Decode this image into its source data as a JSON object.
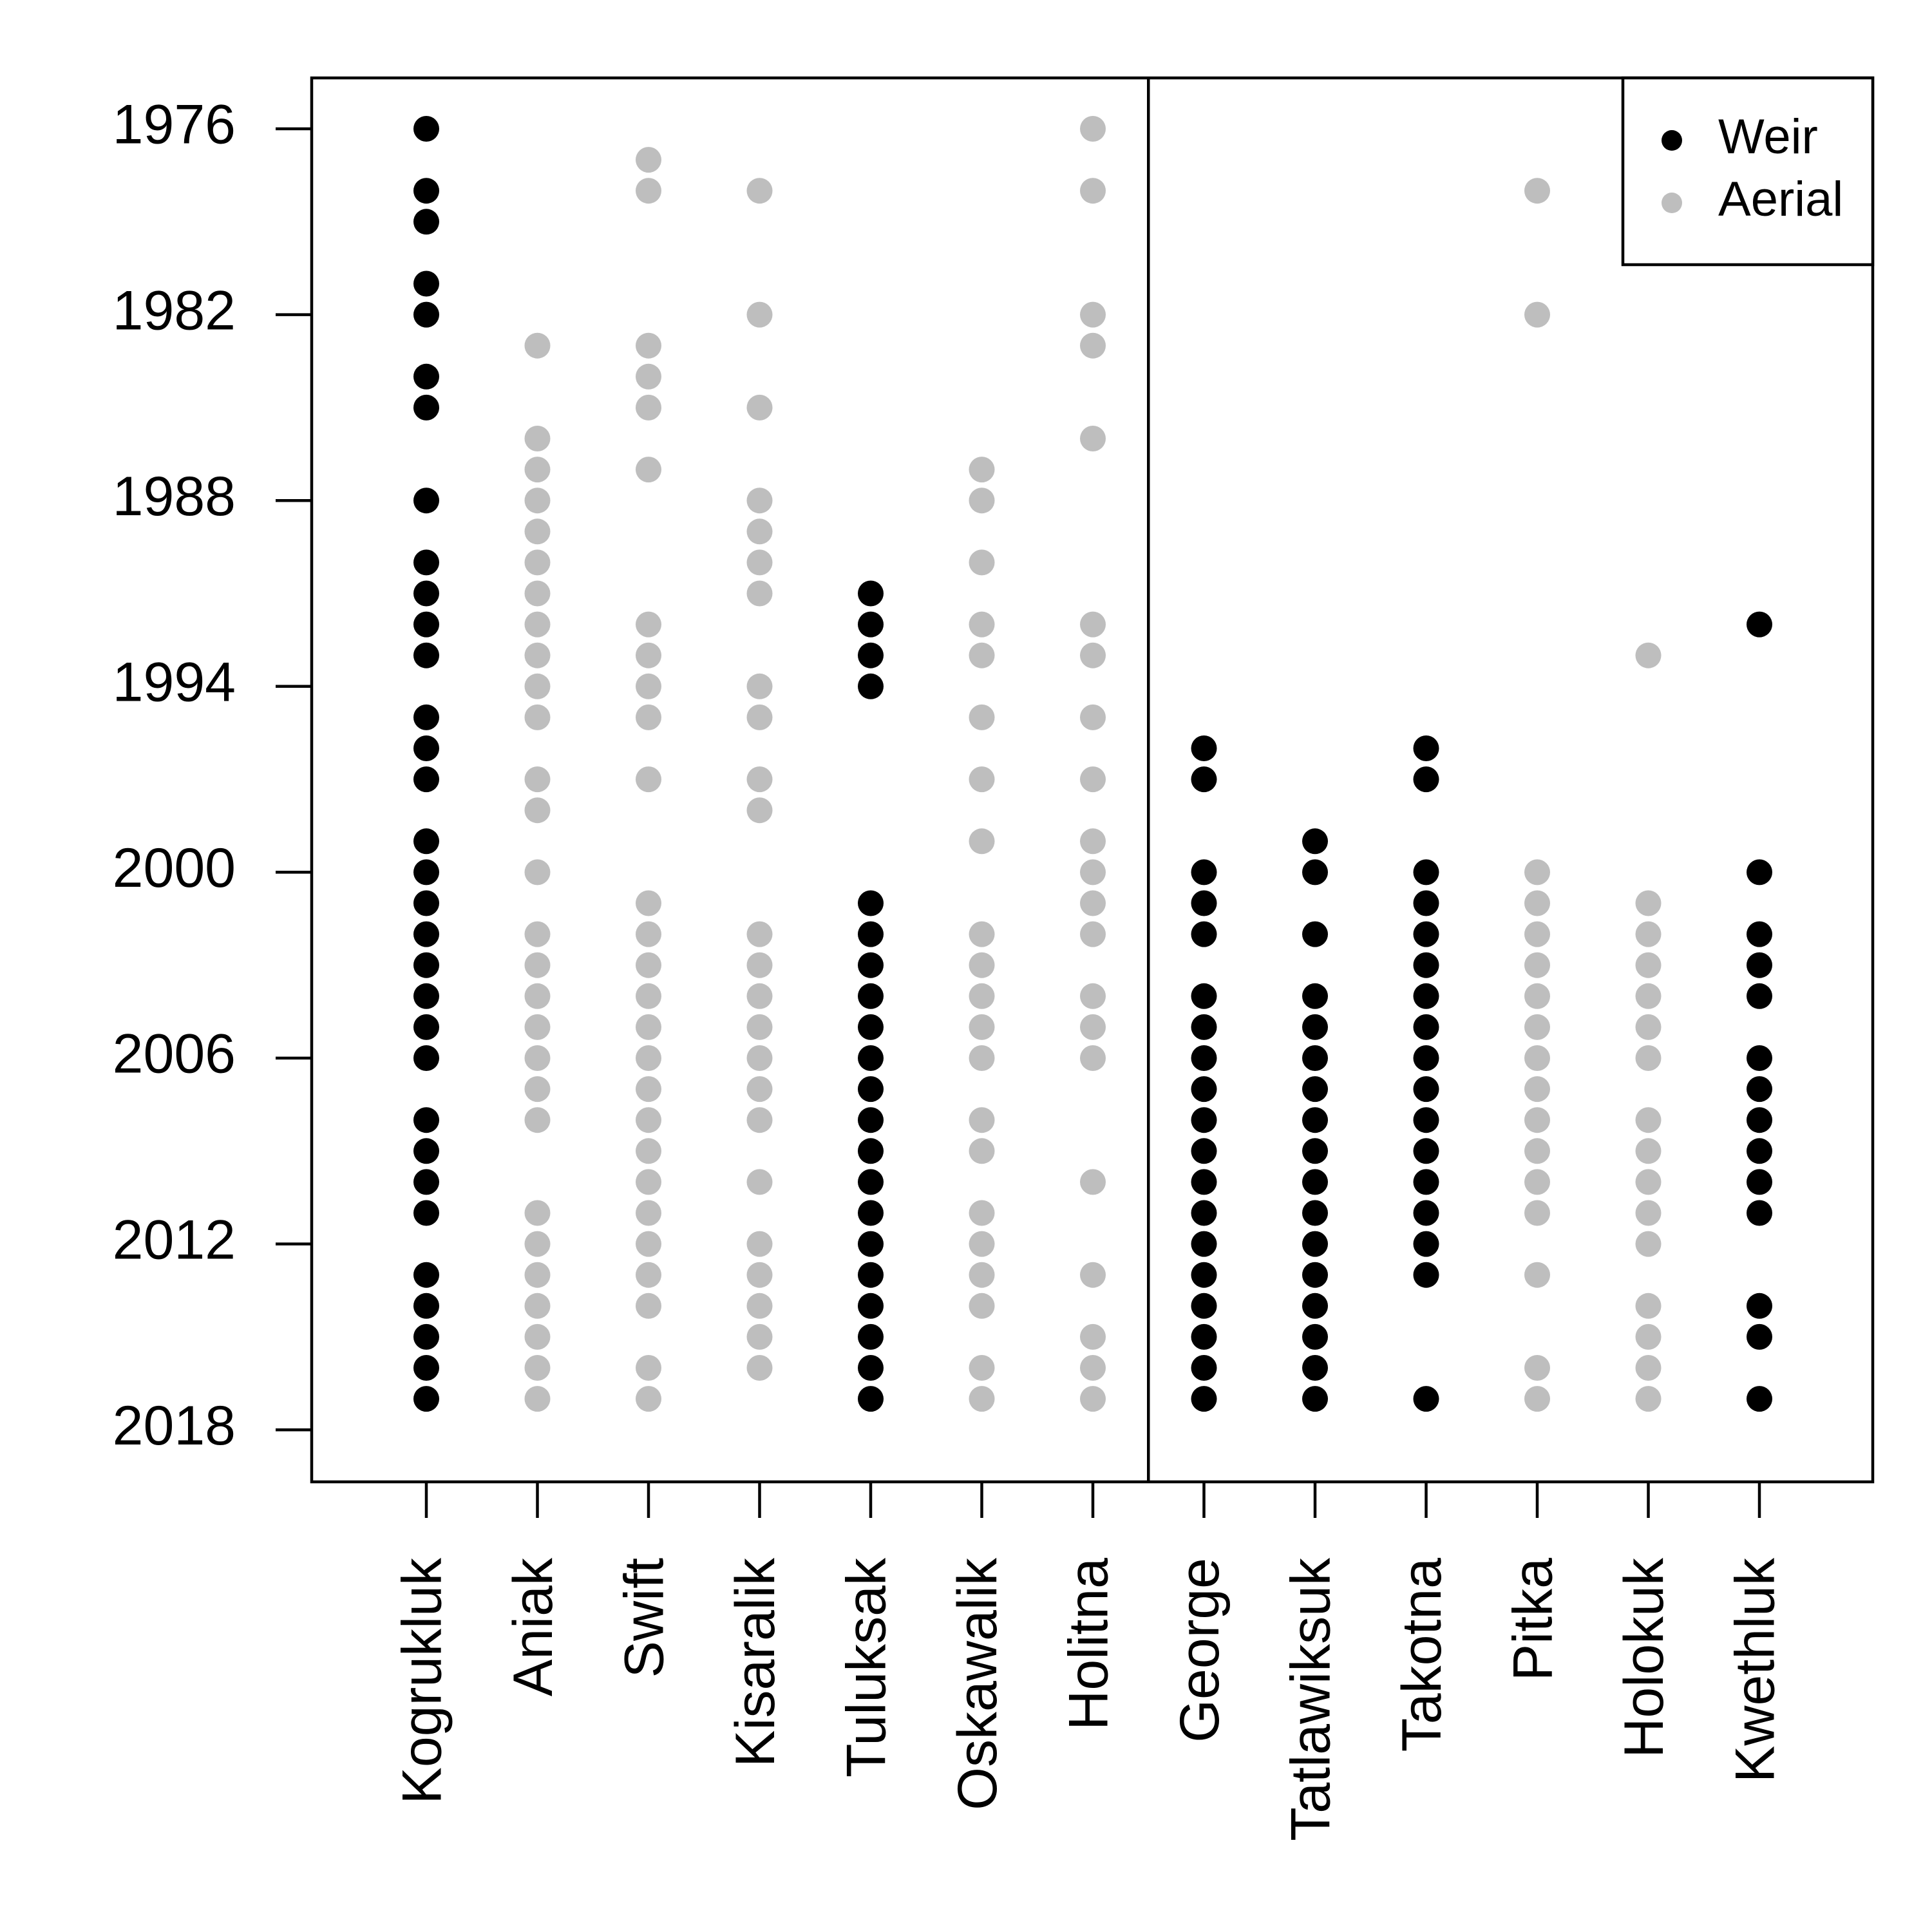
{
  "chart_data": {
    "type": "scatter",
    "title": "",
    "xlabel": "",
    "ylabel": "",
    "ylim": [
      2020.5,
      1974.5
    ],
    "y_ticks": [
      1976,
      1982,
      1988,
      1994,
      2000,
      2006,
      2012,
      2018
    ],
    "categories": [
      "Kogrukluk",
      "Aniak",
      "Swift",
      "Kisaralik",
      "Tuluksak",
      "Oskawalik",
      "Holitna",
      "George",
      "Tatlawiksuk",
      "Takotna",
      "Pitka",
      "Holokuk",
      "Kwethluk"
    ],
    "divider_after_category": "Holitna",
    "legend": {
      "position": "top-right",
      "entries": [
        {
          "label": "Weir",
          "color": "#000000"
        },
        {
          "label": "Aerial",
          "color": "#bebebe"
        }
      ]
    },
    "series": [
      {
        "river": "Kogrukluk",
        "method": "Weir",
        "years": [
          1976,
          1978,
          1979,
          1981,
          1982,
          1984,
          1985,
          1988,
          1990,
          1991,
          1992,
          1993,
          1995,
          1996,
          1997,
          1999,
          2000,
          2001,
          2002,
          2003,
          2004,
          2005,
          2006,
          2008,
          2009,
          2010,
          2011,
          2013,
          2014,
          2015,
          2016,
          2017
        ]
      },
      {
        "river": "Aniak",
        "method": "Aerial",
        "years": [
          1983,
          1986,
          1987,
          1988,
          1989,
          1990,
          1991,
          1992,
          1993,
          1994,
          1995,
          1997,
          1998,
          2000,
          2002,
          2003,
          2004,
          2005,
          2006,
          2007,
          2008,
          2011,
          2012,
          2013,
          2014,
          2015,
          2016,
          2017
        ]
      },
      {
        "river": "Swift",
        "method": "Aerial",
        "years": [
          1977,
          1978,
          1983,
          1984,
          1985,
          1987,
          1992,
          1993,
          1994,
          1995,
          1997,
          2001,
          2002,
          2003,
          2004,
          2005,
          2006,
          2007,
          2008,
          2009,
          2010,
          2011,
          2012,
          2013,
          2014,
          2016,
          2017
        ]
      },
      {
        "river": "Kisaralik",
        "method": "Aerial",
        "years": [
          1978,
          1982,
          1985,
          1988,
          1989,
          1990,
          1991,
          1994,
          1995,
          1997,
          1998,
          2002,
          2003,
          2004,
          2005,
          2006,
          2007,
          2008,
          2010,
          2012,
          2013,
          2014,
          2015,
          2016
        ]
      },
      {
        "river": "Tuluksak",
        "method": "Weir",
        "years": [
          1991,
          1992,
          1993,
          1994,
          2001,
          2002,
          2003,
          2004,
          2005,
          2006,
          2007,
          2008,
          2009,
          2010,
          2011,
          2012,
          2013,
          2014,
          2015,
          2016,
          2017
        ]
      },
      {
        "river": "Oskawalik",
        "method": "Aerial",
        "years": [
          1987,
          1988,
          1990,
          1992,
          1993,
          1995,
          1997,
          1999,
          2002,
          2003,
          2004,
          2005,
          2006,
          2008,
          2009,
          2011,
          2012,
          2013,
          2014,
          2016,
          2017
        ]
      },
      {
        "river": "Holitna",
        "method": "Aerial",
        "years": [
          1976,
          1978,
          1982,
          1983,
          1986,
          1992,
          1993,
          1995,
          1997,
          1999,
          2000,
          2001,
          2002,
          2004,
          2005,
          2006,
          2010,
          2013,
          2015,
          2016,
          2017
        ]
      },
      {
        "river": "George",
        "method": "Weir",
        "years": [
          1996,
          1997,
          2000,
          2001,
          2002,
          2004,
          2005,
          2006,
          2007,
          2008,
          2009,
          2010,
          2011,
          2012,
          2013,
          2014,
          2015,
          2016,
          2017
        ]
      },
      {
        "river": "Tatlawiksuk",
        "method": "Weir",
        "years": [
          1999,
          2000,
          2002,
          2004,
          2005,
          2006,
          2007,
          2008,
          2009,
          2010,
          2011,
          2012,
          2013,
          2014,
          2015,
          2016,
          2017
        ]
      },
      {
        "river": "Takotna",
        "method": "Weir",
        "years": [
          1996,
          1997,
          2000,
          2001,
          2002,
          2003,
          2004,
          2005,
          2006,
          2007,
          2008,
          2009,
          2010,
          2011,
          2012,
          2013,
          2017
        ]
      },
      {
        "river": "Pitka",
        "method": "Aerial",
        "years": [
          1978,
          1982,
          2000,
          2001,
          2002,
          2003,
          2004,
          2005,
          2006,
          2007,
          2008,
          2009,
          2010,
          2011,
          2013,
          2016,
          2017
        ]
      },
      {
        "river": "Holokuk",
        "method": "Aerial",
        "years": [
          1993,
          2001,
          2002,
          2003,
          2004,
          2005,
          2006,
          2008,
          2009,
          2010,
          2011,
          2012,
          2014,
          2015,
          2016,
          2017
        ]
      },
      {
        "river": "Kwethluk",
        "method": "Weir",
        "years": [
          1992,
          2000,
          2002,
          2003,
          2004,
          2006,
          2007,
          2008,
          2009,
          2010,
          2011,
          2014,
          2015,
          2017
        ]
      }
    ]
  }
}
